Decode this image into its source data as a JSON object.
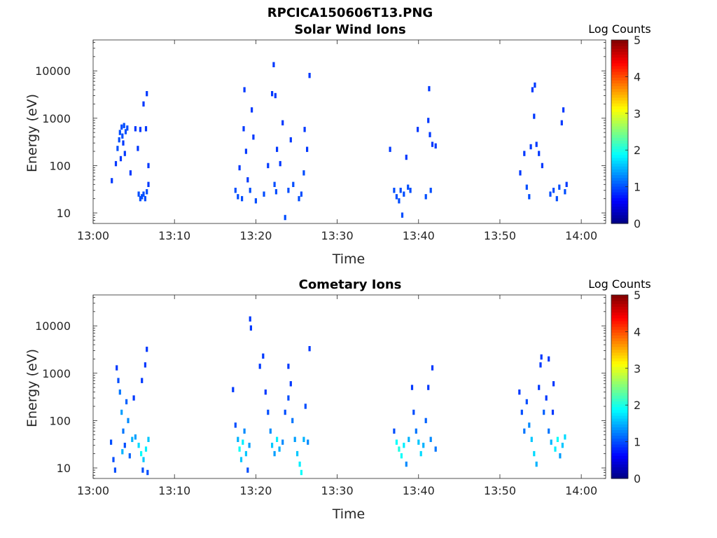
{
  "figure_title": "RPCICA150606T13.PNG",
  "chart_data": [
    {
      "type": "heatmap",
      "title": "Solar Wind Ions",
      "xlabel": "Time",
      "ylabel": "Energy (eV)",
      "yscale": "log",
      "ylim": [
        6,
        45000
      ],
      "xlim": [
        "13:00",
        "14:03"
      ],
      "xticks": [
        "13:00",
        "13:10",
        "13:20",
        "13:30",
        "13:40",
        "13:50",
        "14:00"
      ],
      "yticks": [
        "10",
        "100",
        "1000",
        "10000"
      ],
      "colorbar": {
        "label": "Log Counts",
        "range": [
          0,
          5
        ],
        "ticks": [
          "0",
          "1",
          "2",
          "3",
          "4",
          "5"
        ],
        "colormap": "jet"
      },
      "cells": [
        {
          "t": 2.3,
          "e": 48,
          "v": 0.9
        },
        {
          "t": 2.8,
          "e": 110,
          "v": 0.9
        },
        {
          "t": 3.0,
          "e": 230,
          "v": 1.0
        },
        {
          "t": 3.2,
          "e": 350,
          "v": 1.0
        },
        {
          "t": 3.3,
          "e": 500,
          "v": 1.0
        },
        {
          "t": 3.5,
          "e": 650,
          "v": 1.0
        },
        {
          "t": 3.6,
          "e": 420,
          "v": 1.0
        },
        {
          "t": 3.7,
          "e": 300,
          "v": 0.9
        },
        {
          "t": 3.8,
          "e": 700,
          "v": 1.0
        },
        {
          "t": 3.9,
          "e": 180,
          "v": 0.9
        },
        {
          "t": 4.0,
          "e": 520,
          "v": 1.0
        },
        {
          "t": 4.2,
          "e": 620,
          "v": 1.0
        },
        {
          "t": 3.4,
          "e": 140,
          "v": 0.9
        },
        {
          "t": 4.6,
          "e": 70,
          "v": 0.9
        },
        {
          "t": 5.2,
          "e": 600,
          "v": 0.9
        },
        {
          "t": 5.5,
          "e": 230,
          "v": 0.9
        },
        {
          "t": 5.8,
          "e": 580,
          "v": 0.9
        },
        {
          "t": 6.2,
          "e": 2000,
          "v": 0.9
        },
        {
          "t": 6.6,
          "e": 3300,
          "v": 0.9
        },
        {
          "t": 6.5,
          "e": 600,
          "v": 0.9
        },
        {
          "t": 6.8,
          "e": 100,
          "v": 0.9
        },
        {
          "t": 5.6,
          "e": 25,
          "v": 1.0
        },
        {
          "t": 5.8,
          "e": 20,
          "v": 1.0
        },
        {
          "t": 6.0,
          "e": 22,
          "v": 1.0
        },
        {
          "t": 6.2,
          "e": 25,
          "v": 1.0
        },
        {
          "t": 6.4,
          "e": 20,
          "v": 1.0
        },
        {
          "t": 6.6,
          "e": 28,
          "v": 1.0
        },
        {
          "t": 6.8,
          "e": 40,
          "v": 0.9
        },
        {
          "t": 17.5,
          "e": 30,
          "v": 1.0
        },
        {
          "t": 17.8,
          "e": 22,
          "v": 1.0
        },
        {
          "t": 18.0,
          "e": 90,
          "v": 0.9
        },
        {
          "t": 18.3,
          "e": 20,
          "v": 1.0
        },
        {
          "t": 18.5,
          "e": 600,
          "v": 0.9
        },
        {
          "t": 18.6,
          "e": 4000,
          "v": 0.9
        },
        {
          "t": 18.8,
          "e": 200,
          "v": 0.9
        },
        {
          "t": 19.0,
          "e": 50,
          "v": 0.9
        },
        {
          "t": 19.3,
          "e": 30,
          "v": 1.0
        },
        {
          "t": 19.5,
          "e": 1500,
          "v": 0.9
        },
        {
          "t": 19.7,
          "e": 400,
          "v": 0.9
        },
        {
          "t": 20.0,
          "e": 18,
          "v": 1.0
        },
        {
          "t": 21.0,
          "e": 25,
          "v": 1.0
        },
        {
          "t": 21.5,
          "e": 100,
          "v": 0.9
        },
        {
          "t": 22.0,
          "e": 3300,
          "v": 0.9
        },
        {
          "t": 22.2,
          "e": 13500,
          "v": 0.9
        },
        {
          "t": 22.4,
          "e": 3000,
          "v": 0.9
        },
        {
          "t": 22.6,
          "e": 220,
          "v": 0.9
        },
        {
          "t": 22.3,
          "e": 40,
          "v": 1.0
        },
        {
          "t": 22.5,
          "e": 28,
          "v": 1.0
        },
        {
          "t": 23.0,
          "e": 110,
          "v": 0.9
        },
        {
          "t": 23.3,
          "e": 800,
          "v": 0.9
        },
        {
          "t": 23.6,
          "e": 8,
          "v": 1.0
        },
        {
          "t": 24.0,
          "e": 30,
          "v": 1.0
        },
        {
          "t": 24.3,
          "e": 350,
          "v": 0.9
        },
        {
          "t": 24.6,
          "e": 40,
          "v": 1.0
        },
        {
          "t": 25.3,
          "e": 20,
          "v": 1.0
        },
        {
          "t": 25.6,
          "e": 25,
          "v": 1.0
        },
        {
          "t": 25.9,
          "e": 70,
          "v": 1.0
        },
        {
          "t": 26.0,
          "e": 580,
          "v": 0.9
        },
        {
          "t": 26.3,
          "e": 220,
          "v": 0.9
        },
        {
          "t": 26.6,
          "e": 8000,
          "v": 0.9
        },
        {
          "t": 37.0,
          "e": 30,
          "v": 1.0
        },
        {
          "t": 37.3,
          "e": 22,
          "v": 1.0
        },
        {
          "t": 37.6,
          "e": 18,
          "v": 1.0
        },
        {
          "t": 37.8,
          "e": 30,
          "v": 1.0
        },
        {
          "t": 38.0,
          "e": 9,
          "v": 1.0
        },
        {
          "t": 38.2,
          "e": 25,
          "v": 1.0
        },
        {
          "t": 38.5,
          "e": 150,
          "v": 0.9
        },
        {
          "t": 38.7,
          "e": 35,
          "v": 1.0
        },
        {
          "t": 39.0,
          "e": 30,
          "v": 1.0
        },
        {
          "t": 36.5,
          "e": 220,
          "v": 0.9
        },
        {
          "t": 39.9,
          "e": 580,
          "v": 0.9
        },
        {
          "t": 40.9,
          "e": 22,
          "v": 1.0
        },
        {
          "t": 41.2,
          "e": 900,
          "v": 0.9
        },
        {
          "t": 41.3,
          "e": 4200,
          "v": 0.9
        },
        {
          "t": 41.5,
          "e": 30,
          "v": 1.0
        },
        {
          "t": 41.7,
          "e": 280,
          "v": 0.9
        },
        {
          "t": 42.1,
          "e": 260,
          "v": 0.9
        },
        {
          "t": 41.4,
          "e": 450,
          "v": 0.9
        },
        {
          "t": 52.5,
          "e": 70,
          "v": 0.9
        },
        {
          "t": 53.0,
          "e": 180,
          "v": 0.9
        },
        {
          "t": 53.3,
          "e": 35,
          "v": 1.0
        },
        {
          "t": 53.6,
          "e": 22,
          "v": 1.0
        },
        {
          "t": 53.8,
          "e": 250,
          "v": 0.9
        },
        {
          "t": 54.0,
          "e": 4000,
          "v": 0.9
        },
        {
          "t": 54.2,
          "e": 1100,
          "v": 0.9
        },
        {
          "t": 54.3,
          "e": 5000,
          "v": 0.9
        },
        {
          "t": 54.5,
          "e": 280,
          "v": 0.9
        },
        {
          "t": 54.8,
          "e": 180,
          "v": 0.9
        },
        {
          "t": 55.2,
          "e": 100,
          "v": 0.9
        },
        {
          "t": 56.2,
          "e": 25,
          "v": 1.0
        },
        {
          "t": 56.6,
          "e": 30,
          "v": 1.0
        },
        {
          "t": 57.0,
          "e": 20,
          "v": 1.0
        },
        {
          "t": 57.3,
          "e": 35,
          "v": 1.0
        },
        {
          "t": 57.6,
          "e": 800,
          "v": 0.9
        },
        {
          "t": 57.8,
          "e": 1500,
          "v": 0.9
        },
        {
          "t": 58.0,
          "e": 28,
          "v": 1.0
        },
        {
          "t": 58.2,
          "e": 40,
          "v": 0.9
        }
      ]
    },
    {
      "type": "heatmap",
      "title": "Cometary Ions",
      "xlabel": "Time",
      "ylabel": "Energy (eV)",
      "yscale": "log",
      "ylim": [
        6,
        45000
      ],
      "xlim": [
        "13:00",
        "14:03"
      ],
      "xticks": [
        "13:00",
        "13:10",
        "13:20",
        "13:30",
        "13:40",
        "13:50",
        "14:00"
      ],
      "yticks": [
        "10",
        "100",
        "1000",
        "10000"
      ],
      "colorbar": {
        "label": "Log Counts",
        "range": [
          0,
          5
        ],
        "ticks": [
          "0",
          "1",
          "2",
          "3",
          "4",
          "5"
        ],
        "colormap": "jet"
      },
      "cells": [
        {
          "t": 2.2,
          "e": 35,
          "v": 1.0
        },
        {
          "t": 2.5,
          "e": 15,
          "v": 1.0
        },
        {
          "t": 2.7,
          "e": 9,
          "v": 1.0
        },
        {
          "t": 2.9,
          "e": 1300,
          "v": 0.9
        },
        {
          "t": 3.1,
          "e": 700,
          "v": 1.0
        },
        {
          "t": 3.3,
          "e": 400,
          "v": 1.2
        },
        {
          "t": 3.5,
          "e": 150,
          "v": 1.4
        },
        {
          "t": 3.7,
          "e": 60,
          "v": 1.2
        },
        {
          "t": 3.9,
          "e": 30,
          "v": 1.0
        },
        {
          "t": 4.1,
          "e": 250,
          "v": 1.1
        },
        {
          "t": 4.3,
          "e": 100,
          "v": 1.3
        },
        {
          "t": 3.6,
          "e": 22,
          "v": 1.5
        },
        {
          "t": 4.5,
          "e": 18,
          "v": 1.1
        },
        {
          "t": 4.8,
          "e": 40,
          "v": 1.5
        },
        {
          "t": 5.0,
          "e": 300,
          "v": 0.9
        },
        {
          "t": 5.2,
          "e": 45,
          "v": 1.4
        },
        {
          "t": 5.6,
          "e": 30,
          "v": 1.7
        },
        {
          "t": 5.9,
          "e": 20,
          "v": 1.9
        },
        {
          "t": 6.2,
          "e": 15,
          "v": 1.6
        },
        {
          "t": 6.5,
          "e": 25,
          "v": 1.8
        },
        {
          "t": 6.8,
          "e": 40,
          "v": 1.6
        },
        {
          "t": 6.0,
          "e": 700,
          "v": 0.9
        },
        {
          "t": 6.4,
          "e": 1500,
          "v": 0.9
        },
        {
          "t": 6.6,
          "e": 3200,
          "v": 0.9
        },
        {
          "t": 6.1,
          "e": 9,
          "v": 1.0
        },
        {
          "t": 6.7,
          "e": 8,
          "v": 1.0
        },
        {
          "t": 17.2,
          "e": 450,
          "v": 0.9
        },
        {
          "t": 17.5,
          "e": 80,
          "v": 1.0
        },
        {
          "t": 17.8,
          "e": 40,
          "v": 1.5
        },
        {
          "t": 18.0,
          "e": 25,
          "v": 1.9
        },
        {
          "t": 18.2,
          "e": 15,
          "v": 1.6
        },
        {
          "t": 18.4,
          "e": 35,
          "v": 1.8
        },
        {
          "t": 18.6,
          "e": 60,
          "v": 1.3
        },
        {
          "t": 18.8,
          "e": 20,
          "v": 1.6
        },
        {
          "t": 19.0,
          "e": 9,
          "v": 1.0
        },
        {
          "t": 19.2,
          "e": 30,
          "v": 1.4
        },
        {
          "t": 19.3,
          "e": 14000,
          "v": 0.9
        },
        {
          "t": 19.4,
          "e": 9000,
          "v": 0.9
        },
        {
          "t": 20.5,
          "e": 1400,
          "v": 0.9
        },
        {
          "t": 20.9,
          "e": 2300,
          "v": 0.9
        },
        {
          "t": 21.2,
          "e": 400,
          "v": 0.9
        },
        {
          "t": 21.5,
          "e": 150,
          "v": 1.0
        },
        {
          "t": 21.8,
          "e": 60,
          "v": 1.3
        },
        {
          "t": 22.0,
          "e": 30,
          "v": 1.6
        },
        {
          "t": 22.3,
          "e": 20,
          "v": 1.4
        },
        {
          "t": 22.6,
          "e": 40,
          "v": 1.8
        },
        {
          "t": 22.9,
          "e": 25,
          "v": 1.5
        },
        {
          "t": 23.3,
          "e": 35,
          "v": 1.3
        },
        {
          "t": 23.6,
          "e": 150,
          "v": 1.0
        },
        {
          "t": 24.0,
          "e": 300,
          "v": 1.0
        },
        {
          "t": 24.3,
          "e": 600,
          "v": 0.9
        },
        {
          "t": 24.5,
          "e": 100,
          "v": 1.2
        },
        {
          "t": 24.8,
          "e": 40,
          "v": 1.4
        },
        {
          "t": 25.1,
          "e": 20,
          "v": 1.6
        },
        {
          "t": 25.4,
          "e": 12,
          "v": 1.8
        },
        {
          "t": 25.6,
          "e": 8,
          "v": 1.9
        },
        {
          "t": 25.9,
          "e": 40,
          "v": 1.5
        },
        {
          "t": 26.1,
          "e": 200,
          "v": 1.0
        },
        {
          "t": 26.4,
          "e": 35,
          "v": 1.3
        },
        {
          "t": 26.6,
          "e": 3300,
          "v": 0.9
        },
        {
          "t": 24.0,
          "e": 1400,
          "v": 0.9
        },
        {
          "t": 37.0,
          "e": 60,
          "v": 1.0
        },
        {
          "t": 37.3,
          "e": 35,
          "v": 1.9
        },
        {
          "t": 37.6,
          "e": 25,
          "v": 2.0
        },
        {
          "t": 37.9,
          "e": 18,
          "v": 1.9
        },
        {
          "t": 38.2,
          "e": 30,
          "v": 1.8
        },
        {
          "t": 38.5,
          "e": 12,
          "v": 1.3
        },
        {
          "t": 38.8,
          "e": 40,
          "v": 1.5
        },
        {
          "t": 39.2,
          "e": 500,
          "v": 0.9
        },
        {
          "t": 39.4,
          "e": 150,
          "v": 1.0
        },
        {
          "t": 39.7,
          "e": 60,
          "v": 1.2
        },
        {
          "t": 40.0,
          "e": 35,
          "v": 1.6
        },
        {
          "t": 40.3,
          "e": 20,
          "v": 1.7
        },
        {
          "t": 40.6,
          "e": 30,
          "v": 1.5
        },
        {
          "t": 40.9,
          "e": 100,
          "v": 1.1
        },
        {
          "t": 41.2,
          "e": 500,
          "v": 0.9
        },
        {
          "t": 41.5,
          "e": 40,
          "v": 1.3
        },
        {
          "t": 41.7,
          "e": 1300,
          "v": 0.9
        },
        {
          "t": 42.1,
          "e": 25,
          "v": 1.2
        },
        {
          "t": 52.4,
          "e": 400,
          "v": 0.9
        },
        {
          "t": 52.7,
          "e": 150,
          "v": 1.0
        },
        {
          "t": 53.0,
          "e": 60,
          "v": 1.2
        },
        {
          "t": 53.3,
          "e": 250,
          "v": 1.0
        },
        {
          "t": 53.6,
          "e": 80,
          "v": 1.3
        },
        {
          "t": 53.9,
          "e": 40,
          "v": 1.6
        },
        {
          "t": 54.2,
          "e": 20,
          "v": 1.7
        },
        {
          "t": 54.5,
          "e": 12,
          "v": 1.5
        },
        {
          "t": 54.8,
          "e": 500,
          "v": 0.9
        },
        {
          "t": 55.0,
          "e": 1500,
          "v": 0.9
        },
        {
          "t": 55.1,
          "e": 2200,
          "v": 0.9
        },
        {
          "t": 55.4,
          "e": 150,
          "v": 1.1
        },
        {
          "t": 55.7,
          "e": 300,
          "v": 0.9
        },
        {
          "t": 56.0,
          "e": 60,
          "v": 1.2
        },
        {
          "t": 56.3,
          "e": 35,
          "v": 1.5
        },
        {
          "t": 56.5,
          "e": 150,
          "v": 0.9
        },
        {
          "t": 56.8,
          "e": 25,
          "v": 1.8
        },
        {
          "t": 57.1,
          "e": 40,
          "v": 1.9
        },
        {
          "t": 57.4,
          "e": 18,
          "v": 1.4
        },
        {
          "t": 57.7,
          "e": 30,
          "v": 1.6
        },
        {
          "t": 58.0,
          "e": 45,
          "v": 1.7
        },
        {
          "t": 56.0,
          "e": 2000,
          "v": 0.9
        },
        {
          "t": 56.6,
          "e": 600,
          "v": 0.9
        }
      ]
    }
  ]
}
